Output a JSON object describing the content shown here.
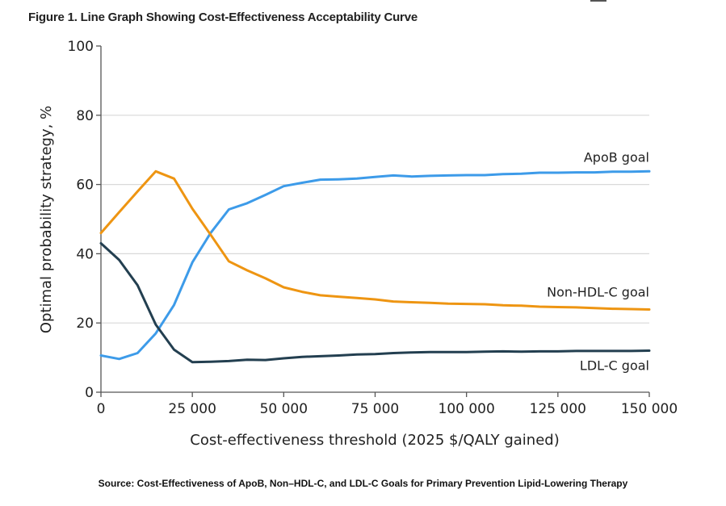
{
  "figure_title": "Figure 1.  Line Graph Showing Cost-Effectiveness Acceptability Curve",
  "source_text": "Source: Cost-Effectiveness of ApoB, Non–HDL-C, and LDL-C Goals for Primary Prevention Lipid-Lowering Therapy",
  "chart_data": {
    "type": "line",
    "title": "Line Graph Showing Cost-Effectiveness Acceptability Curve",
    "xlabel": "Cost-effectiveness threshold (2025 $/QALY gained)",
    "ylabel": "Optimal probability strategy, %",
    "xlim": [
      0,
      150000
    ],
    "ylim": [
      0,
      100
    ],
    "xticks": [
      0,
      25000,
      50000,
      75000,
      100000,
      125000,
      150000
    ],
    "xtick_labels": [
      "0",
      "25 000",
      "50 000",
      "75 000",
      "100 000",
      "125 000",
      "150 000"
    ],
    "yticks": [
      0,
      20,
      40,
      60,
      80,
      100
    ],
    "ytick_labels": [
      "0",
      "20",
      "40",
      "60",
      "80",
      "100"
    ],
    "grid": "horizontal",
    "legend": "inline-right",
    "x": [
      0,
      5000,
      10000,
      15000,
      20000,
      25000,
      30000,
      35000,
      40000,
      45000,
      50000,
      55000,
      60000,
      65000,
      70000,
      75000,
      80000,
      85000,
      90000,
      95000,
      100000,
      105000,
      110000,
      115000,
      120000,
      125000,
      130000,
      135000,
      140000,
      145000,
      150000
    ],
    "series": [
      {
        "name": "ApoB goal",
        "color": "#3d9be9",
        "values": [
          10.6,
          9.6,
          11.3,
          17.0,
          25.2,
          37.5,
          46.0,
          52.8,
          54.6,
          57.0,
          59.5,
          60.5,
          61.4,
          61.5,
          61.7,
          62.2,
          62.6,
          62.3,
          62.5,
          62.6,
          62.7,
          62.7,
          63.0,
          63.1,
          63.4,
          63.4,
          63.5,
          63.5,
          63.7,
          63.7,
          63.8
        ]
      },
      {
        "name": "Non-HDL-C goal",
        "color": "#ee9512",
        "values": [
          46.0,
          52.0,
          58.0,
          63.8,
          61.7,
          53.0,
          45.5,
          37.8,
          35.2,
          32.9,
          30.3,
          29.0,
          28.0,
          27.6,
          27.2,
          26.8,
          26.2,
          26.0,
          25.8,
          25.6,
          25.5,
          25.4,
          25.1,
          25.0,
          24.7,
          24.6,
          24.5,
          24.3,
          24.1,
          24.0,
          23.9
        ]
      },
      {
        "name": "LDL-C goal",
        "color": "#233f50",
        "values": [
          43.0,
          38.2,
          30.9,
          19.5,
          12.3,
          8.7,
          8.8,
          9.0,
          9.4,
          9.3,
          9.8,
          10.2,
          10.4,
          10.6,
          10.9,
          11.0,
          11.3,
          11.5,
          11.6,
          11.6,
          11.6,
          11.7,
          11.8,
          11.7,
          11.8,
          11.8,
          11.9,
          11.9,
          11.9,
          11.9,
          12.0
        ]
      }
    ]
  }
}
